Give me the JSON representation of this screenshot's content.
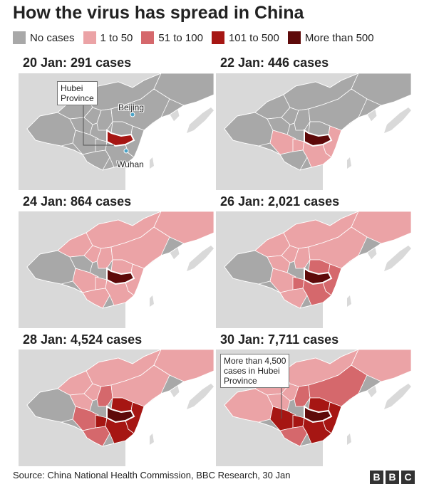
{
  "title": "How the virus has spread in China",
  "legend": [
    {
      "label": "No cases",
      "color": "#a8a8a8"
    },
    {
      "label": "1 to 50",
      "color": "#eba3a6"
    },
    {
      "label": "51 to 100",
      "color": "#d5686c"
    },
    {
      "label": "101 to 500",
      "color": "#a61613"
    },
    {
      "label": "More than 500",
      "color": "#5e0a0a"
    }
  ],
  "panels": [
    {
      "title": "20 Jan: 291 cases"
    },
    {
      "title": "22 Jan: 446 cases"
    },
    {
      "title": "24 Jan: 864 cases"
    },
    {
      "title": "26 Jan: 2,021 cases"
    },
    {
      "title": "28 Jan: 4,524 cases"
    },
    {
      "title": "30 Jan: 7,711 cases"
    }
  ],
  "annotations": {
    "hubei": "Hubei\nProvince",
    "beijing": "Beijing",
    "wuhan": "Wuhan",
    "hubei_cases": "More than 4,500\ncases in Hubei\nProvince"
  },
  "source": "Source: China National Health Commission, BBC Research, 30 Jan",
  "brand": [
    "B",
    "B",
    "C"
  ],
  "colors": {
    "land_other": "#d9d9d9",
    "sea": "#ffffff",
    "no_cases": "#a8a8a8",
    "hubei_outline": "#ffffff"
  }
}
